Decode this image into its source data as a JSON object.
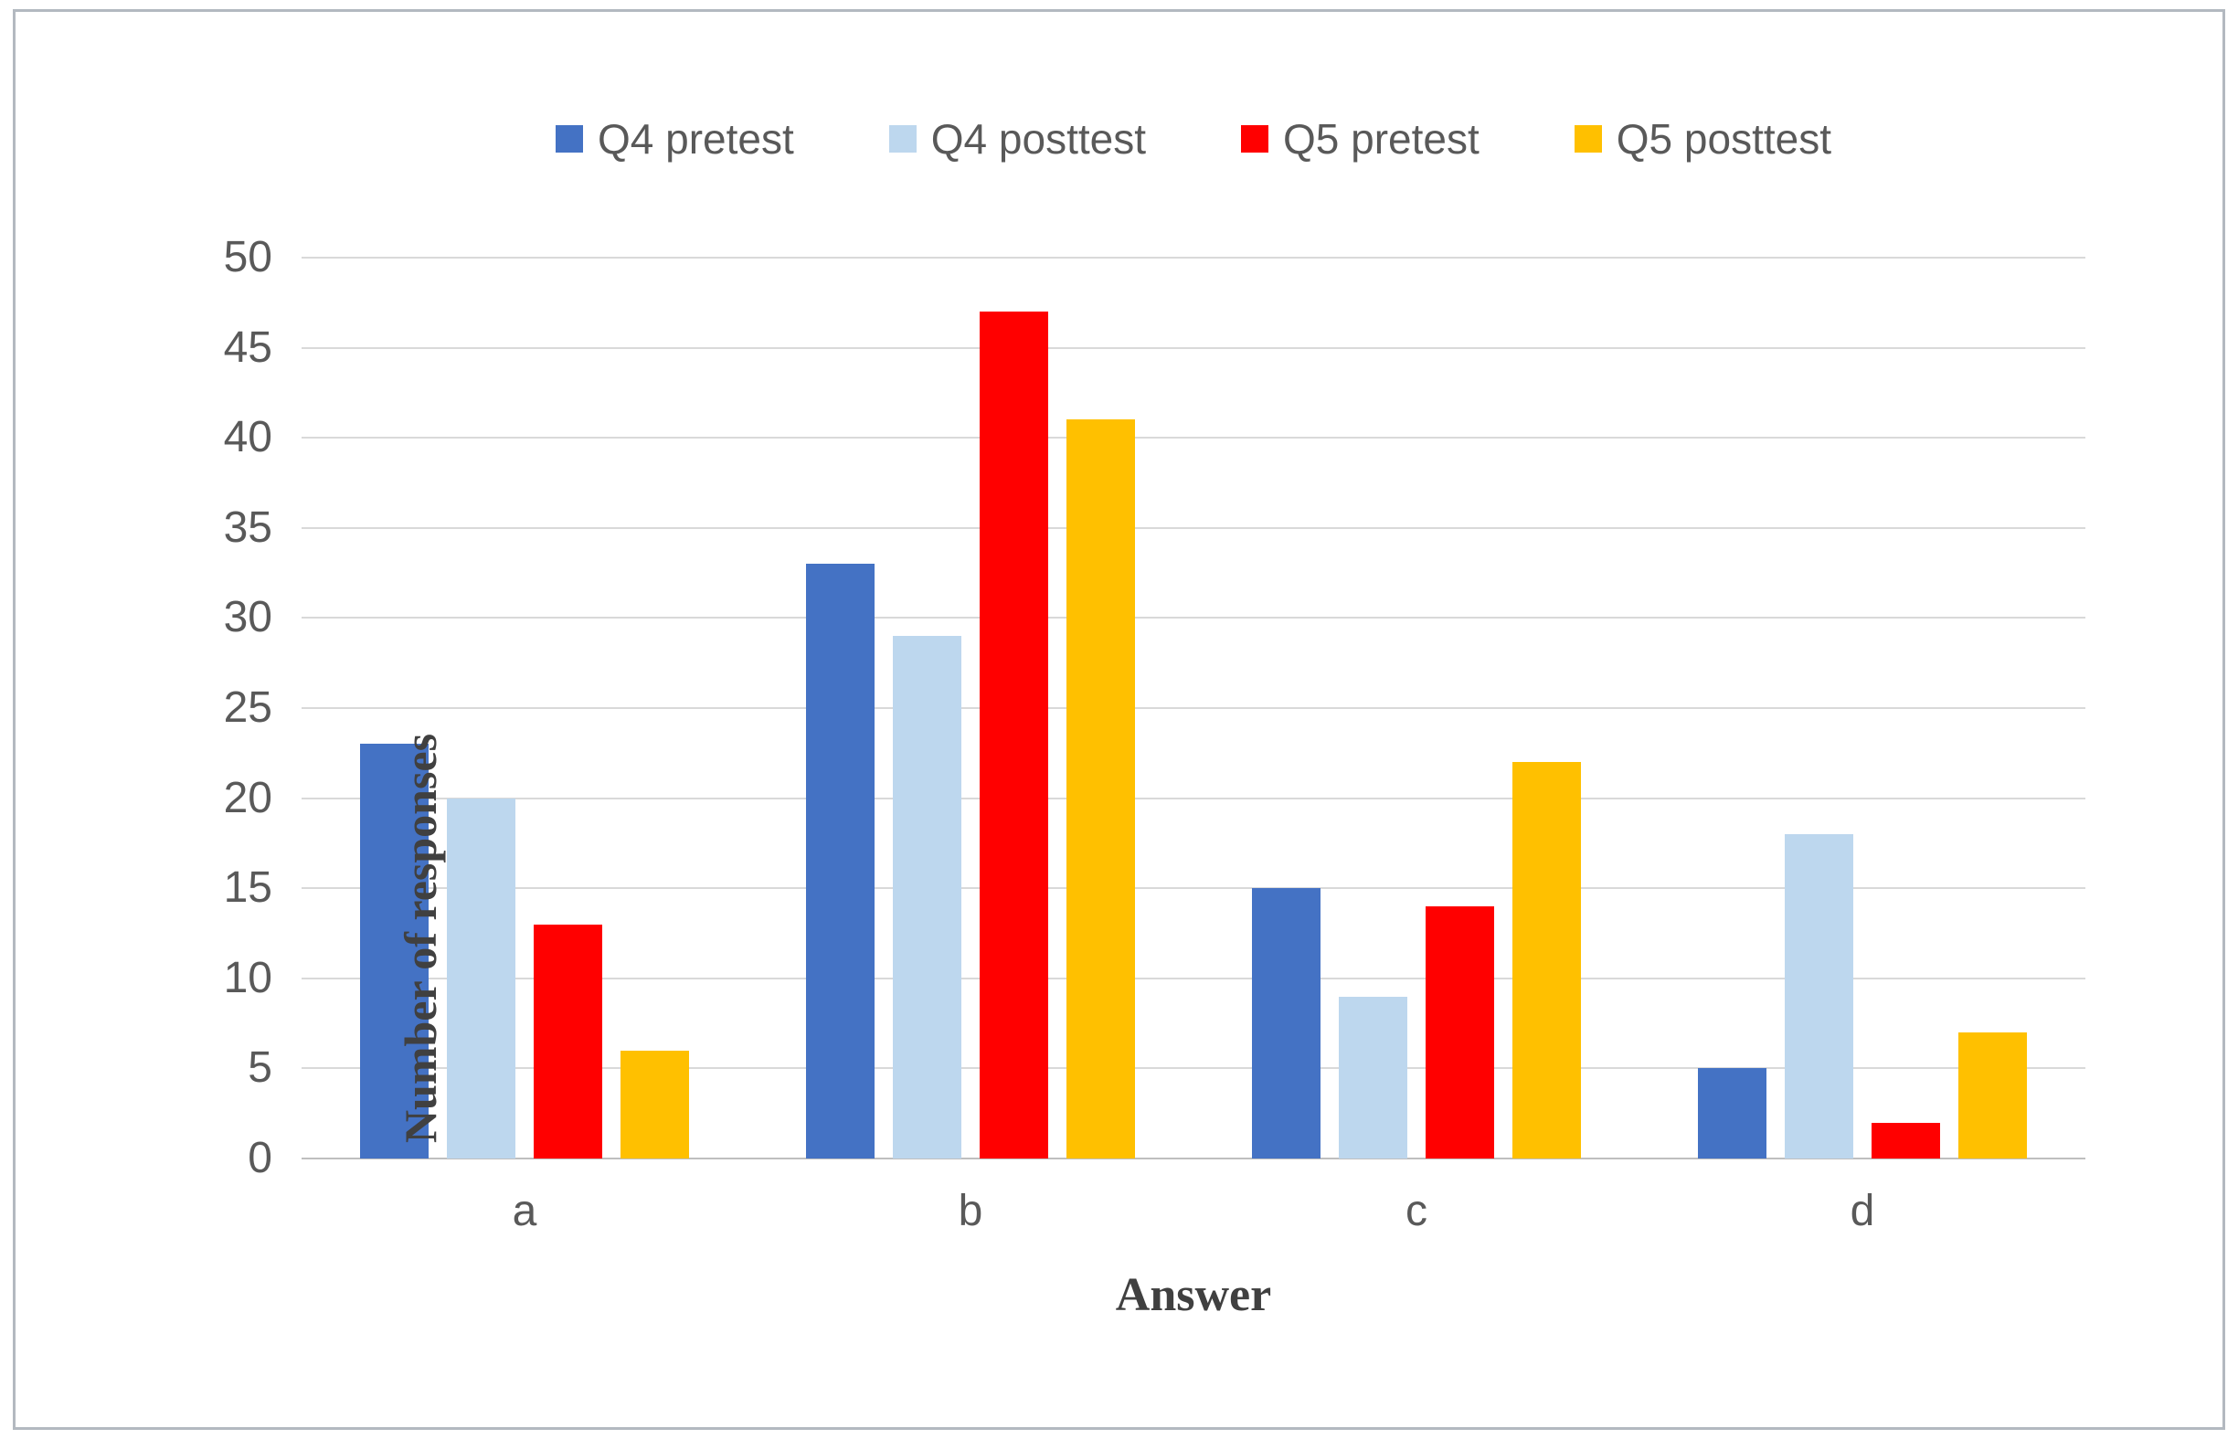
{
  "chart_data": {
    "type": "bar",
    "categories": [
      "a",
      "b",
      "c",
      "d"
    ],
    "series": [
      {
        "name": "Q4 pretest",
        "color": "#4472C4",
        "values": [
          23,
          33,
          15,
          5
        ]
      },
      {
        "name": "Q4 posttest",
        "color": "#BDD7EE",
        "values": [
          20,
          29,
          9,
          18
        ]
      },
      {
        "name": "Q5 pretest",
        "color": "#FF0000",
        "values": [
          13,
          47,
          14,
          2
        ]
      },
      {
        "name": "Q5 posttest",
        "color": "#FFC000",
        "values": [
          6,
          41,
          22,
          7
        ]
      }
    ],
    "title": "",
    "xlabel": "Answer",
    "ylabel": "Number of responses",
    "ylim": [
      0,
      50
    ],
    "yticks": [
      0,
      5,
      10,
      15,
      20,
      25,
      30,
      35,
      40,
      45,
      50
    ],
    "grid": true,
    "legend_position": "top"
  },
  "style": {
    "figure_background": "#ffffff",
    "figure_border_color": "#b3b9c0",
    "gridline_color": "#d9d9d9",
    "baseline_color": "#bfbfbf",
    "tick_label_color": "#595959",
    "legend_label_color": "#595959",
    "axis_title_color": "#404040"
  }
}
